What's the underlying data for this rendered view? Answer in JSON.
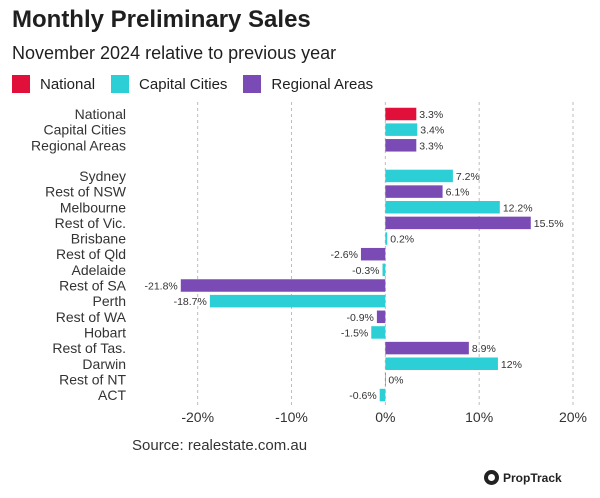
{
  "header": {
    "title": "Monthly Preliminary Sales",
    "subtitle": "November 2024 relative to previous year"
  },
  "legend": [
    {
      "label": "National",
      "color": "#e0103a"
    },
    {
      "label": "Capital Cities",
      "color": "#2ccfd6"
    },
    {
      "label": "Regional Areas",
      "color": "#7a4bb5"
    }
  ],
  "footer": {
    "source": "Source: realestate.com.au",
    "brand": "PropTrack",
    "brand_icon": "proptrack-logo-icon"
  },
  "chart_data": {
    "type": "bar",
    "orientation": "horizontal",
    "xlim": [
      -27,
      20
    ],
    "x_ticks": [
      -20,
      -10,
      0,
      10,
      20
    ],
    "x_tick_labels": [
      "-20%",
      "-10%",
      "0%",
      "10%",
      "20%"
    ],
    "grid": "vertical dashed",
    "bars": [
      {
        "category": "National",
        "value": 3.3,
        "label": "3.3%",
        "series": "National",
        "group": 0
      },
      {
        "category": "Capital Cities",
        "value": 3.4,
        "label": "3.4%",
        "series": "Capital Cities",
        "group": 0
      },
      {
        "category": "Regional Areas",
        "value": 3.3,
        "label": "3.3%",
        "series": "Regional Areas",
        "group": 0
      },
      {
        "category": "Sydney",
        "value": 7.2,
        "label": "7.2%",
        "series": "Capital Cities",
        "group": 1
      },
      {
        "category": "Rest of NSW",
        "value": 6.1,
        "label": "6.1%",
        "series": "Regional Areas",
        "group": 1
      },
      {
        "category": "Melbourne",
        "value": 12.2,
        "label": "12.2%",
        "series": "Capital Cities",
        "group": 1
      },
      {
        "category": "Rest of Vic.",
        "value": 15.5,
        "label": "15.5%",
        "series": "Regional Areas",
        "group": 1
      },
      {
        "category": "Brisbane",
        "value": 0.2,
        "label": "0.2%",
        "series": "Capital Cities",
        "group": 1
      },
      {
        "category": "Rest of Qld",
        "value": -2.6,
        "label": "-2.6%",
        "series": "Regional Areas",
        "group": 1
      },
      {
        "category": "Adelaide",
        "value": -0.3,
        "label": "-0.3%",
        "series": "Capital Cities",
        "group": 1
      },
      {
        "category": "Rest of SA",
        "value": -21.8,
        "label": "-21.8%",
        "series": "Regional Areas",
        "group": 1
      },
      {
        "category": "Perth",
        "value": -18.7,
        "label": "-18.7%",
        "series": "Capital Cities",
        "group": 1
      },
      {
        "category": "Rest of WA",
        "value": -0.9,
        "label": "-0.9%",
        "series": "Regional Areas",
        "group": 1
      },
      {
        "category": "Hobart",
        "value": -1.5,
        "label": "-1.5%",
        "series": "Capital Cities",
        "group": 1
      },
      {
        "category": "Rest of Tas.",
        "value": 8.9,
        "label": "8.9%",
        "series": "Regional Areas",
        "group": 1
      },
      {
        "category": "Darwin",
        "value": 12,
        "label": "12%",
        "series": "Capital Cities",
        "group": 1
      },
      {
        "category": "Rest of NT",
        "value": 0,
        "label": "0%",
        "series": "Regional Areas",
        "group": 1
      },
      {
        "category": "ACT",
        "value": -0.6,
        "label": "-0.6%",
        "series": "Capital Cities",
        "group": 1
      }
    ]
  }
}
